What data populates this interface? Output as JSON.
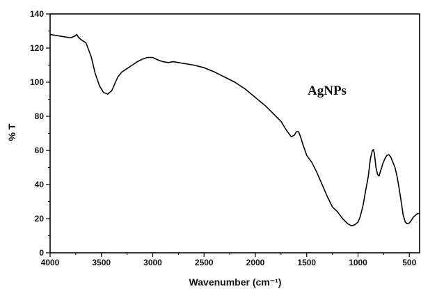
{
  "chart_data": {
    "type": "line",
    "title": "",
    "xlabel": "Wavenumber (cm⁻¹)",
    "ylabel": "% T",
    "xlim": [
      4000,
      400
    ],
    "ylim": [
      0,
      140
    ],
    "x_reversed": true,
    "grid": false,
    "xticks": [
      4000,
      3500,
      3000,
      2500,
      2000,
      1500,
      1000,
      500
    ],
    "xtick_labels": [
      "4000",
      "3500",
      "3000",
      "2500",
      "2000",
      "1500",
      "1000",
      "500"
    ],
    "yticks": [
      0,
      20,
      40,
      60,
      80,
      100,
      120,
      140
    ],
    "ytick_labels": [
      "0",
      "20",
      "40",
      "60",
      "80",
      "100",
      "120",
      "140"
    ],
    "annotation": "AgNPs",
    "series": [
      {
        "color": "#000000",
        "x": [
          4000,
          3900,
          3800,
          3760,
          3740,
          3720,
          3700,
          3650,
          3600,
          3560,
          3520,
          3480,
          3440,
          3400,
          3370,
          3340,
          3300,
          3250,
          3200,
          3150,
          3100,
          3050,
          3000,
          2950,
          2900,
          2850,
          2800,
          2700,
          2600,
          2500,
          2400,
          2300,
          2200,
          2100,
          2000,
          1900,
          1800,
          1750,
          1700,
          1650,
          1620,
          1600,
          1580,
          1560,
          1540,
          1500,
          1450,
          1400,
          1350,
          1300,
          1250,
          1200,
          1150,
          1100,
          1070,
          1050,
          1030,
          1000,
          980,
          950,
          930,
          900,
          880,
          860,
          850,
          840,
          825,
          810,
          795,
          780,
          760,
          740,
          720,
          700,
          680,
          660,
          640,
          620,
          600,
          580,
          560,
          540,
          520,
          500,
          480,
          460,
          440,
          420,
          400
        ],
        "y": [
          128,
          127,
          126,
          127,
          128,
          126,
          125,
          123,
          115,
          105,
          98,
          94,
          93,
          95,
          99,
          103,
          106,
          108,
          110,
          112,
          113.5,
          114.5,
          114.5,
          113,
          112,
          111.5,
          112,
          111,
          110,
          108.5,
          106,
          103,
          100,
          96,
          91,
          86,
          80,
          77,
          72,
          68,
          69,
          71,
          71,
          68,
          64,
          57,
          53,
          47,
          40,
          33,
          27,
          24,
          20,
          17,
          16,
          16,
          16.5,
          18,
          21,
          28,
          35,
          45,
          55,
          60,
          60.5,
          58,
          50,
          46,
          45,
          48,
          52,
          55,
          57,
          57.5,
          56,
          53,
          50,
          45,
          38,
          30,
          22,
          18,
          17,
          17.5,
          19,
          21,
          22,
          23,
          23
        ]
      }
    ]
  }
}
